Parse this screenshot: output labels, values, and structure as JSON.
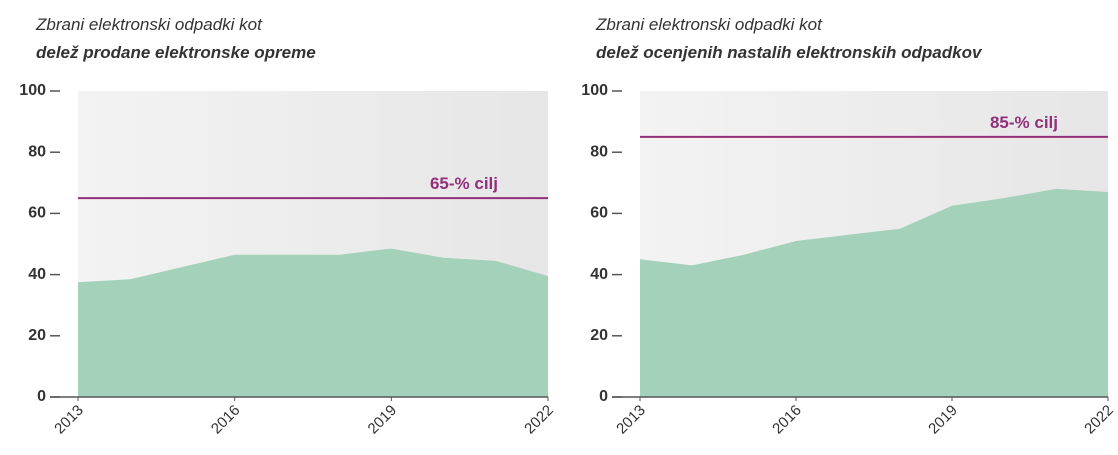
{
  "chart_data": [
    {
      "type": "area",
      "title": "Zbrani elektronski odpadki kot",
      "subtitle": "delež prodane elektronske opreme",
      "x": [
        2013,
        2014,
        2015,
        2016,
        2017,
        2018,
        2019,
        2020,
        2021,
        2022
      ],
      "values": [
        37.5,
        38.5,
        42.5,
        46.5,
        46.5,
        46.5,
        48.5,
        45.5,
        44.5,
        39.5
      ],
      "color": "#a3d1b9",
      "xlim": [
        2013,
        2022
      ],
      "xticks": [
        2013,
        2016,
        2019,
        2022
      ],
      "ylim": [
        0,
        100
      ],
      "yticks": [
        0,
        20,
        40,
        60,
        80,
        100
      ],
      "target": {
        "value": 65,
        "label": "65-% cilj"
      },
      "target_color": "#93307a"
    },
    {
      "type": "area",
      "title": "Zbrani elektronski odpadki kot",
      "subtitle": "delež ocenjenih nastalih elektronskih odpadkov",
      "x": [
        2013,
        2014,
        2015,
        2016,
        2017,
        2018,
        2019,
        2020,
        2021,
        2022
      ],
      "values": [
        45,
        43,
        46.5,
        51,
        53,
        55,
        62.5,
        65,
        68,
        67
      ],
      "color": "#a3d1b9",
      "xlim": [
        2013,
        2022
      ],
      "xticks": [
        2013,
        2016,
        2019,
        2022
      ],
      "ylim": [
        0,
        100
      ],
      "yticks": [
        0,
        20,
        40,
        60,
        80,
        100
      ],
      "target": {
        "value": 85,
        "label": "85-% cilj"
      },
      "target_color": "#93307a"
    }
  ]
}
